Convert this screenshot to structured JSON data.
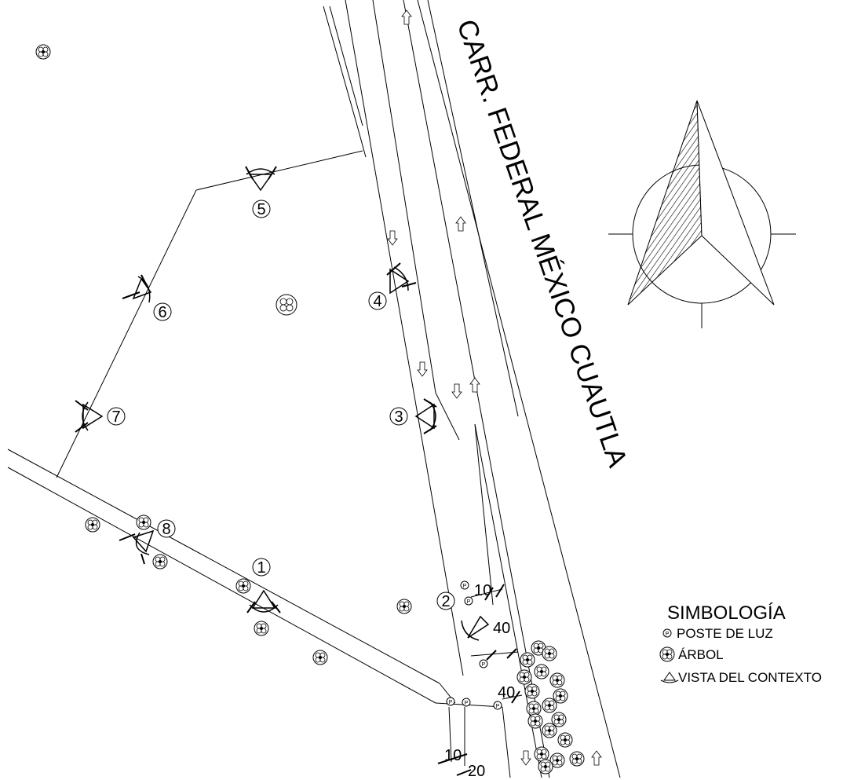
{
  "road_label": "CARR. FEDERAL MÉXICO CUAUTLA",
  "legend": {
    "title": "SIMBOLOGÍA",
    "items": [
      {
        "icon": "light-pole-icon",
        "label": "POSTE DE LUZ"
      },
      {
        "icon": "tree-icon",
        "label": "ÁRBOL"
      },
      {
        "icon": "context-view-icon",
        "label": "VISTA DEL CONTEXTO"
      }
    ]
  },
  "viewpoints": [
    "1",
    "2",
    "3",
    "4",
    "5",
    "6",
    "7",
    "8"
  ],
  "dimensions": {
    "d10_top": "10",
    "d40_upper": "40",
    "d40_lower": "40",
    "d10_bottom": "10",
    "d20_bottom": "20"
  },
  "north_arrow": {
    "icon": "north-arrow-icon"
  }
}
